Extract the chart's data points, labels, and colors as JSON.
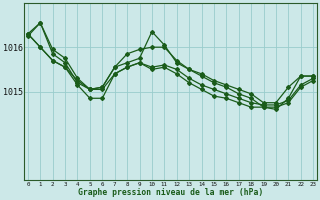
{
  "title": "Graphe pression niveau de la mer (hPa)",
  "background_color": "#cce8e8",
  "grid_color": "#99cccc",
  "line_color": "#1a5c1a",
  "x_ticks": [
    0,
    1,
    2,
    3,
    4,
    5,
    6,
    7,
    8,
    9,
    10,
    11,
    12,
    13,
    14,
    15,
    16,
    17,
    18,
    19,
    20,
    21,
    22,
    23
  ],
  "y_ticks": [
    1015,
    1016
  ],
  "ylim": [
    1013.0,
    1017.0
  ],
  "xlim": [
    -0.3,
    23.3
  ],
  "series": [
    [
      1016.3,
      1016.55,
      1015.85,
      1015.65,
      1015.2,
      1015.05,
      1015.1,
      1015.55,
      1015.65,
      1015.75,
      1016.35,
      1016.05,
      1015.65,
      1015.5,
      1015.35,
      1015.2,
      1015.1,
      1014.95,
      1014.85,
      1014.65,
      1014.6,
      1014.85,
      1015.35,
      1015.35
    ],
    [
      1016.3,
      1016.0,
      1015.7,
      1015.55,
      1015.15,
      1014.85,
      1014.85,
      1015.4,
      1015.55,
      1015.65,
      1015.5,
      1015.55,
      1015.4,
      1015.2,
      1015.05,
      1014.9,
      1014.85,
      1014.75,
      1014.65,
      1014.65,
      1014.65,
      1014.75,
      1015.1,
      1015.25
    ],
    [
      1016.3,
      1016.0,
      1015.7,
      1015.55,
      1015.25,
      1015.05,
      1015.05,
      1015.4,
      1015.55,
      1015.65,
      1015.55,
      1015.6,
      1015.5,
      1015.3,
      1015.15,
      1015.05,
      1014.95,
      1014.85,
      1014.75,
      1014.7,
      1014.7,
      1014.8,
      1015.15,
      1015.3
    ],
    [
      1016.25,
      1016.55,
      1015.95,
      1015.75,
      1015.3,
      1015.05,
      1015.1,
      1015.55,
      1015.85,
      1015.95,
      1016.0,
      1016.0,
      1015.7,
      1015.5,
      1015.4,
      1015.25,
      1015.15,
      1015.05,
      1014.95,
      1014.75,
      1014.75,
      1015.1,
      1015.35,
      1015.35
    ]
  ]
}
